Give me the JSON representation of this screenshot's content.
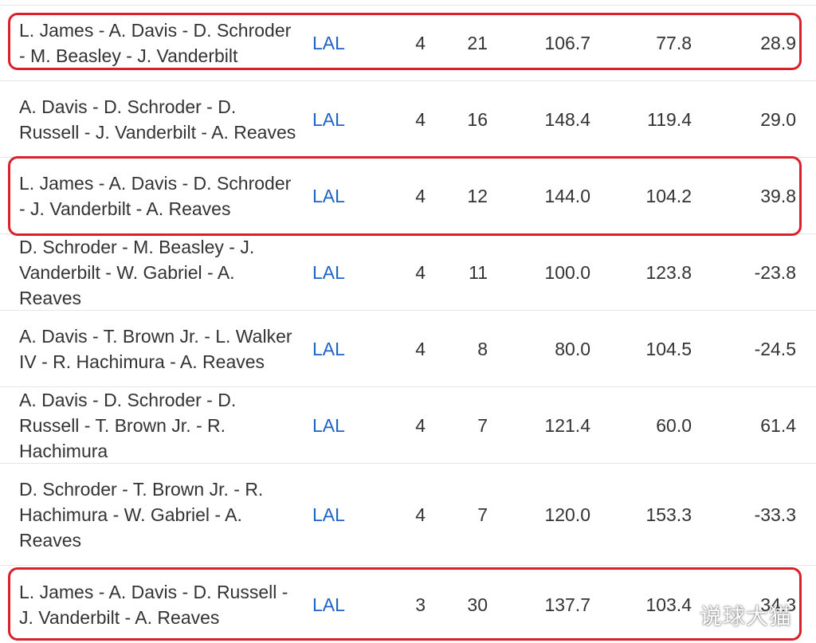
{
  "rows": [
    {
      "lineup": "L. James - A. Davis - D. Schroder - M. Beasley - J. Vanderbilt",
      "team": "LAL",
      "gp": "4",
      "min": "21",
      "ortg": "106.7",
      "drtg": "77.8",
      "net": "28.9",
      "highlighted": true
    },
    {
      "lineup": "A. Davis - D. Schroder - D. Russell - J. Vanderbilt - A. Reaves",
      "team": "LAL",
      "gp": "4",
      "min": "16",
      "ortg": "148.4",
      "drtg": "119.4",
      "net": "29.0",
      "highlighted": false
    },
    {
      "lineup": "L. James - A. Davis - D. Schroder - J. Vanderbilt - A. Reaves",
      "team": "LAL",
      "gp": "4",
      "min": "12",
      "ortg": "144.0",
      "drtg": "104.2",
      "net": "39.8",
      "highlighted": true
    },
    {
      "lineup": "D. Schroder - M. Beasley - J. Vanderbilt - W. Gabriel - A. Reaves",
      "team": "LAL",
      "gp": "4",
      "min": "11",
      "ortg": "100.0",
      "drtg": "123.8",
      "net": "-23.8",
      "highlighted": false
    },
    {
      "lineup": "A. Davis - T. Brown Jr. - L. Walker IV - R. Hachimura - A. Reaves",
      "team": "LAL",
      "gp": "4",
      "min": "8",
      "ortg": "80.0",
      "drtg": "104.5",
      "net": "-24.5",
      "highlighted": false
    },
    {
      "lineup": "A. Davis - D. Schroder - D. Russell - T. Brown Jr. - R. Hachimura",
      "team": "LAL",
      "gp": "4",
      "min": "7",
      "ortg": "121.4",
      "drtg": "60.0",
      "net": "61.4",
      "highlighted": false
    },
    {
      "lineup": "D. Schroder - T. Brown Jr. - R. Hachimura - W. Gabriel - A. Reaves",
      "team": "LAL",
      "gp": "4",
      "min": "7",
      "ortg": "120.0",
      "drtg": "153.3",
      "net": "-33.3",
      "highlighted": false
    },
    {
      "lineup": "L. James - A. Davis - D. Russell - J. Vanderbilt - A. Reaves",
      "team": "LAL",
      "gp": "3",
      "min": "30",
      "ortg": "137.7",
      "drtg": "103.4",
      "net": "34.3",
      "highlighted": true
    }
  ],
  "watermark": "说球大猫",
  "colors": {
    "team_link": "#1f62c7",
    "highlight_border": "#d9212b",
    "divider": "#e6e6e6",
    "text": "#333333"
  }
}
